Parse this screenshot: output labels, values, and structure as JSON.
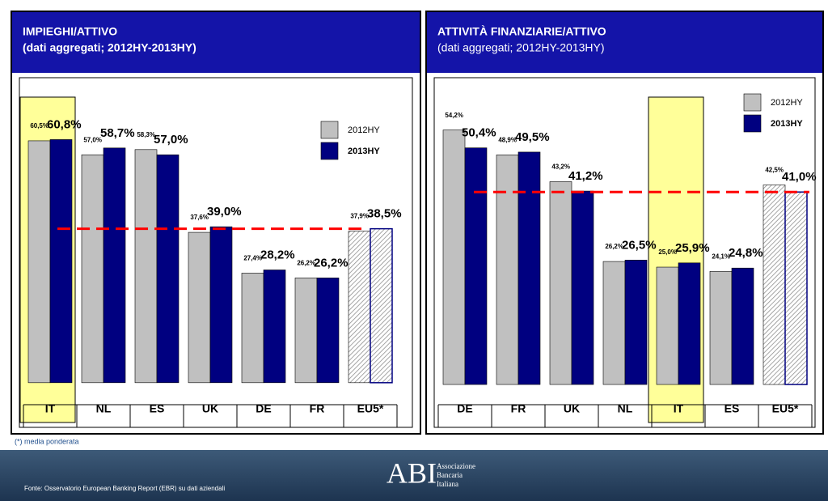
{
  "chart_data": [
    {
      "type": "bar",
      "title": "IMPIEGHI/ATTIVO",
      "subtitle": "(dati aggregati; 2012HY-2013HY)",
      "categories": [
        "IT",
        "NL",
        "ES",
        "UK",
        "DE",
        "FR",
        "EU5*"
      ],
      "series": [
        {
          "name": "2012HY",
          "color": "#c0c0c0",
          "values": [
            60.5,
            57.0,
            58.3,
            37.6,
            27.4,
            26.2,
            37.9
          ],
          "value_labels": [
            "60,5%",
            "57,0%",
            "58,3%",
            "37,6%",
            "27,4%",
            "26,2%",
            "37,9%"
          ]
        },
        {
          "name": "2013HY",
          "color": "#000080",
          "values": [
            60.8,
            58.7,
            57.0,
            39.0,
            28.2,
            26.2,
            38.5
          ],
          "value_labels": [
            "60,8%",
            "58,7%",
            "57,0%",
            "39,0%",
            "28,2%",
            "26,2%",
            "38,5%"
          ]
        }
      ],
      "ylim": [
        -5.5,
        70
      ],
      "highlight_index": 0,
      "hatched_index": 6,
      "reference_line": {
        "value": 38.5,
        "color": "#ff0000"
      }
    },
    {
      "type": "bar",
      "title": "ATTIVITÀ FINANZIARIE/ATTIVO",
      "subtitle": "(dati aggregati; 2012HY-2013HY)",
      "categories": [
        "DE",
        "FR",
        "UK",
        "NL",
        "IT",
        "ES",
        "EU5*"
      ],
      "series": [
        {
          "name": "2012HY",
          "color": "#c0c0c0",
          "values": [
            54.2,
            48.9,
            43.2,
            26.2,
            25.0,
            24.1,
            42.5
          ],
          "value_labels": [
            "54,2%",
            "48,9%",
            "43,2%",
            "26,2%",
            "25,0%",
            "24,1%",
            "42,5%"
          ]
        },
        {
          "name": "2013HY",
          "color": "#000080",
          "values": [
            50.4,
            49.5,
            41.2,
            26.5,
            25.9,
            24.8,
            41.0
          ],
          "value_labels": [
            "50,4%",
            "49,5%",
            "41,2%",
            "26,5%",
            "25,9%",
            "24,8%",
            "41,0%"
          ]
        }
      ],
      "ylim": [
        -4.3,
        60
      ],
      "highlight_index": 4,
      "hatched_index": 6,
      "reference_line": {
        "value": 41.0,
        "color": "#ff0000"
      }
    }
  ],
  "footnote": "(*) media ponderata",
  "source": "Fonte: Osservatorio European Banking Report (EBR) su dati aziendali",
  "logo": {
    "mark": "ABI",
    "lines": [
      "Associazione",
      "Bancaria",
      "Italiana"
    ]
  }
}
